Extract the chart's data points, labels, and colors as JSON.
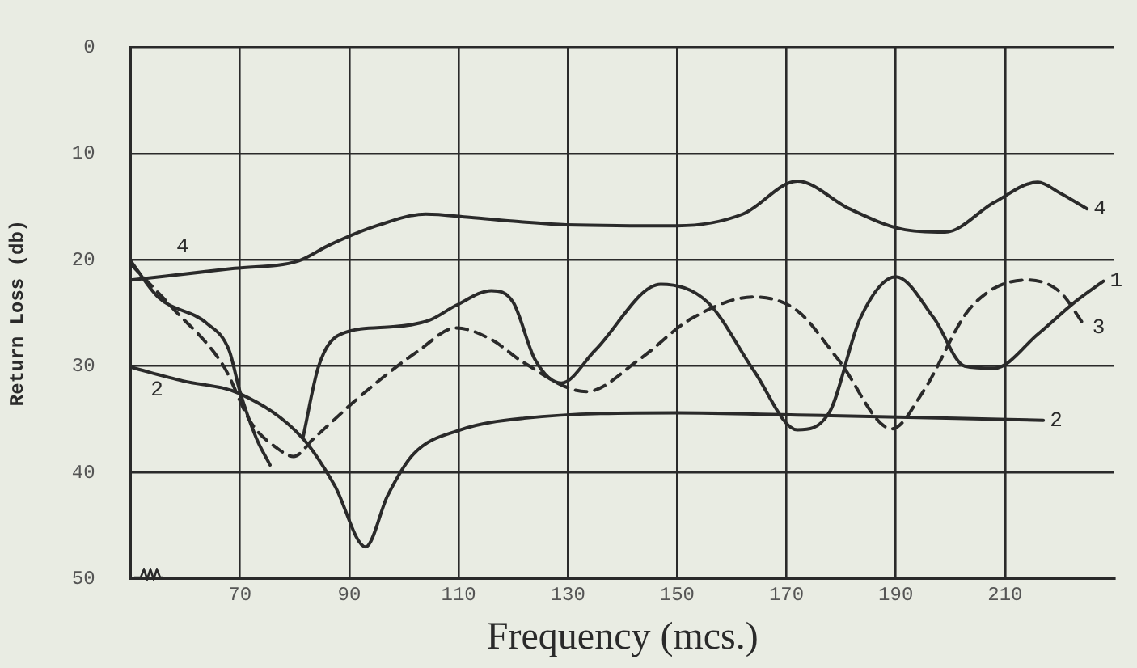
{
  "chart_data": {
    "type": "line",
    "xlabel": "Frequency (mcs.)",
    "ylabel": "Return Loss (db)",
    "xlim": [
      50,
      230
    ],
    "xticks": [
      70,
      90,
      110,
      130,
      150,
      170,
      190,
      210
    ],
    "ylim": [
      50,
      0
    ],
    "yticks": [
      0,
      10,
      20,
      30,
      40,
      50
    ],
    "grid": true,
    "legend": false,
    "marker": "none",
    "annotations": [
      "4",
      "2"
    ],
    "series": [
      {
        "name": "4",
        "color": "#2a2a2a",
        "line_style": "solid",
        "x": [
          50,
          69,
          80.7,
          86.4,
          95,
          104,
          112,
          121,
          129.7,
          150,
          162,
          172,
          181.5,
          191,
          199,
          208,
          216,
          220,
          225
        ],
        "values": [
          21.9,
          20.8,
          20.1,
          18.6,
          16.8,
          15.7,
          16.0,
          16.4,
          16.7,
          16.8,
          15.7,
          12.6,
          15.2,
          17.1,
          17.4,
          14.6,
          12.7,
          13.7,
          15.2
        ]
      },
      {
        "name": "1",
        "color": "#2a2a2a",
        "line_style": "solid",
        "x": [
          50,
          55,
          64,
          68,
          70,
          73,
          75.5,
          78,
          81.5,
          84.4,
          88.4,
          98,
          104.6,
          109.5,
          116,
          120,
          124,
          128.8,
          135,
          147,
          155.6,
          164,
          172,
          177.8,
          183.5,
          190,
          197,
          202.6,
          208,
          216,
          222.7,
          228
        ],
        "values": [
          20.1,
          23.5,
          26,
          28.5,
          32.4,
          36.8,
          39.3,
          null,
          36.8,
          30,
          27,
          26.3,
          25.7,
          24.3,
          22.9,
          24,
          29.4,
          31.6,
          28.5,
          22.3,
          24.0,
          30.4,
          36.0,
          34.4,
          25.5,
          21.6,
          25.5,
          30,
          30.2,
          27,
          24,
          22
        ]
      },
      {
        "name": "3",
        "color": "#2a2a2a",
        "line_style": "dashed",
        "x": [
          50,
          57.6,
          67,
          72,
          77,
          79.8,
          83.5,
          93,
          102.8,
          109.5,
          116,
          122,
          133.4,
          143,
          152.7,
          164,
          172,
          179.5,
          189.3,
          195,
          203.7,
          214,
          220,
          224.8
        ],
        "values": [
          20.4,
          24.5,
          30,
          35.3,
          37.8,
          38.5,
          36.8,
          32.4,
          28.5,
          26.4,
          27.5,
          29.7,
          32.4,
          29.4,
          25.5,
          23.5,
          24.8,
          29.4,
          35.9,
          32.4,
          24.5,
          21.9,
          23,
          26.4
        ]
      },
      {
        "name": "2",
        "color": "#2a2a2a",
        "line_style": "solid",
        "x": [
          50,
          59.6,
          70,
          81.5,
          87.3,
          93,
          97,
          101.7,
          110.3,
          122,
          150,
          172,
          201,
          217
        ],
        "values": [
          30.1,
          31.4,
          32.6,
          36.8,
          41.2,
          47,
          42.2,
          38.3,
          36.0,
          34.9,
          34.4,
          34.6,
          34.9,
          35.1
        ]
      }
    ]
  }
}
